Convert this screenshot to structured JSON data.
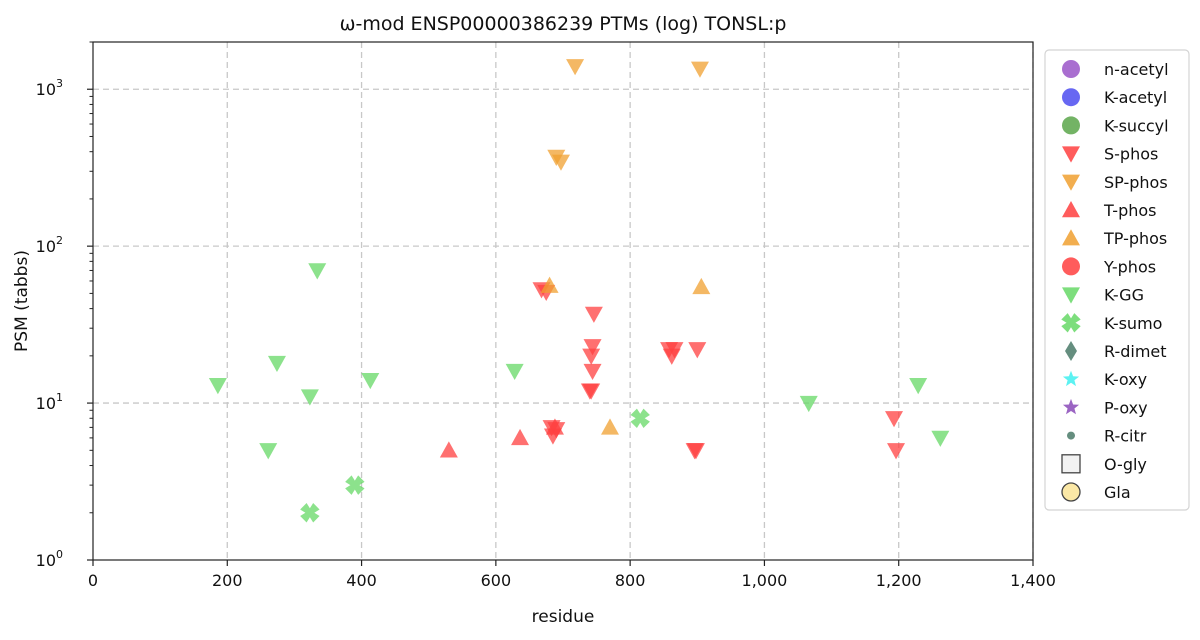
{
  "chart_data": {
    "type": "scatter",
    "title": "ω-mod ENSP00000386239 PTMs (log) TONSL:p",
    "xlabel": "residue",
    "ylabel": "PSM (tabbs)",
    "xlim": [
      0,
      1400
    ],
    "ylim": [
      1,
      2000
    ],
    "xscale": "linear",
    "yscale": "log",
    "grid": true,
    "legend_position": "right-outside",
    "x_ticks": [
      {
        "value": 0,
        "label": "0"
      },
      {
        "value": 200,
        "label": "200"
      },
      {
        "value": 400,
        "label": "400"
      },
      {
        "value": 600,
        "label": "600"
      },
      {
        "value": 800,
        "label": "800"
      },
      {
        "value": 1000,
        "label": "1,000"
      },
      {
        "value": 1200,
        "label": "1,200"
      },
      {
        "value": 1400,
        "label": "1,400"
      }
    ],
    "y_ticks": [
      {
        "value": 1,
        "base": "10",
        "exp": "0"
      },
      {
        "value": 10,
        "base": "10",
        "exp": "1"
      },
      {
        "value": 100,
        "base": "10",
        "exp": "2"
      },
      {
        "value": 1000,
        "base": "10",
        "exp": "3"
      }
    ],
    "series": [
      {
        "name": "n-acetyl",
        "marker": "circle",
        "color": "#9a55c8",
        "points": []
      },
      {
        "name": "K-acetyl",
        "marker": "circle",
        "color": "#4c4cf0",
        "points": []
      },
      {
        "name": "K-succyl",
        "marker": "circle",
        "color": "#5aa64a",
        "points": []
      },
      {
        "name": "S-phos",
        "marker": "triangle-down",
        "color": "#ff4040",
        "points": [
          {
            "x": 668,
            "y": 53
          },
          {
            "x": 675,
            "y": 51
          },
          {
            "x": 746,
            "y": 37
          },
          {
            "x": 744,
            "y": 23
          },
          {
            "x": 742,
            "y": 20
          },
          {
            "x": 744,
            "y": 16
          },
          {
            "x": 740,
            "y": 12
          },
          {
            "x": 742,
            "y": 12
          },
          {
            "x": 683,
            "y": 7
          },
          {
            "x": 690,
            "y": 6.8
          },
          {
            "x": 685,
            "y": 6.2
          },
          {
            "x": 858,
            "y": 22
          },
          {
            "x": 866,
            "y": 22
          },
          {
            "x": 862,
            "y": 20
          },
          {
            "x": 900,
            "y": 22
          },
          {
            "x": 896,
            "y": 5
          },
          {
            "x": 898,
            "y": 5
          },
          {
            "x": 1193,
            "y": 8
          },
          {
            "x": 1196,
            "y": 5
          }
        ]
      },
      {
        "name": "SP-phos",
        "marker": "triangle-down",
        "color": "#f0a030",
        "points": [
          {
            "x": 718,
            "y": 1400
          },
          {
            "x": 904,
            "y": 1350
          },
          {
            "x": 690,
            "y": 370
          },
          {
            "x": 697,
            "y": 345
          }
        ]
      },
      {
        "name": "T-phos",
        "marker": "triangle-up",
        "color": "#ff4040",
        "points": [
          {
            "x": 530,
            "y": 5
          },
          {
            "x": 636,
            "y": 6
          },
          {
            "x": 688,
            "y": 7
          }
        ]
      },
      {
        "name": "TP-phos",
        "marker": "triangle-up",
        "color": "#f0a030",
        "points": [
          {
            "x": 680,
            "y": 56
          },
          {
            "x": 906,
            "y": 55
          },
          {
            "x": 770,
            "y": 7
          }
        ]
      },
      {
        "name": "Y-phos",
        "marker": "circle",
        "color": "#ff4040",
        "points": []
      },
      {
        "name": "K-GG",
        "marker": "triangle-down",
        "color": "#66d866",
        "points": [
          {
            "x": 334,
            "y": 70
          },
          {
            "x": 274,
            "y": 18
          },
          {
            "x": 186,
            "y": 13
          },
          {
            "x": 323,
            "y": 11
          },
          {
            "x": 413,
            "y": 14
          },
          {
            "x": 628,
            "y": 16
          },
          {
            "x": 261,
            "y": 5
          },
          {
            "x": 1066,
            "y": 10
          },
          {
            "x": 1229,
            "y": 13
          },
          {
            "x": 1262,
            "y": 6
          }
        ]
      },
      {
        "name": "K-sumo",
        "marker": "x",
        "color": "#66d866",
        "points": [
          {
            "x": 323,
            "y": 2
          },
          {
            "x": 390,
            "y": 3
          },
          {
            "x": 815,
            "y": 8
          }
        ]
      },
      {
        "name": "R-dimet",
        "marker": "diamond",
        "color": "#4a7a68",
        "points": []
      },
      {
        "name": "K-oxy",
        "marker": "star",
        "color": "#40f0f0",
        "points": []
      },
      {
        "name": "P-oxy",
        "marker": "star",
        "color": "#8a4ab8",
        "points": []
      },
      {
        "name": "R-citr",
        "marker": "small-circle",
        "color": "#4a7a68",
        "points": []
      },
      {
        "name": "O-gly",
        "marker": "square-open",
        "color": "#f2f2f2",
        "points": []
      },
      {
        "name": "Gla",
        "marker": "circle-open",
        "color": "#fbe8a6",
        "points": []
      }
    ]
  }
}
